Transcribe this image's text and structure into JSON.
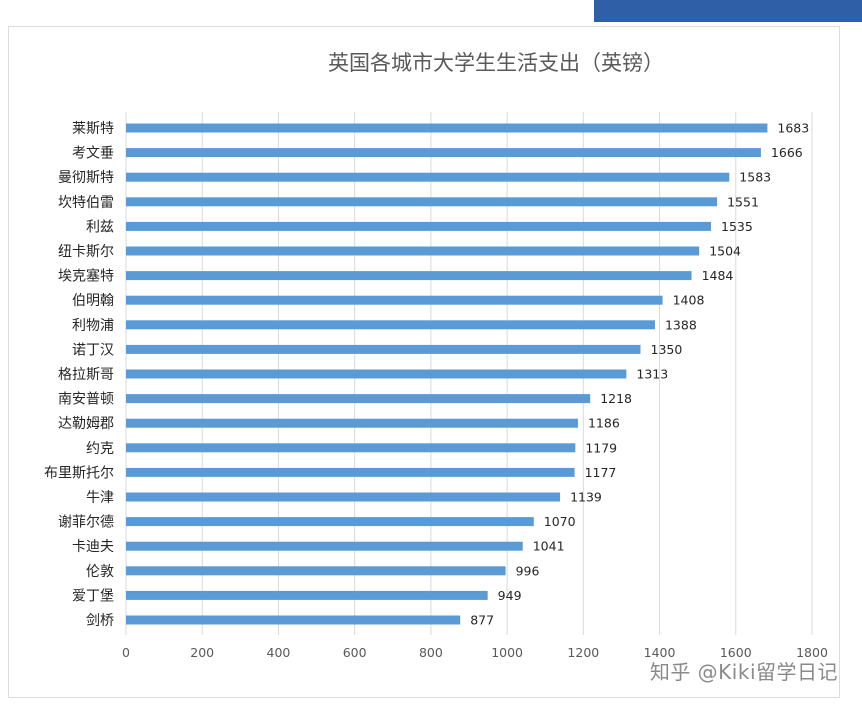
{
  "chart_data": {
    "type": "bar",
    "orientation": "horizontal",
    "title": "英国各城市大学生生活支出（英镑）",
    "categories": [
      "莱斯特",
      "考文垂",
      "曼彻斯特",
      "坎特伯雷",
      "利兹",
      "纽卡斯尔",
      "埃克塞特",
      "伯明翰",
      "利物浦",
      "诺丁汉",
      "格拉斯哥",
      "南安普顿",
      "达勒姆郡",
      "约克",
      "布里斯托尔",
      "牛津",
      "谢菲尔德",
      "卡迪夫",
      "伦敦",
      "爱丁堡",
      "剑桥"
    ],
    "values": [
      1683,
      1666,
      1583,
      1551,
      1535,
      1504,
      1484,
      1408,
      1388,
      1350,
      1313,
      1218,
      1186,
      1179,
      1177,
      1139,
      1070,
      1041,
      996,
      949,
      877
    ],
    "xlim": [
      0,
      1800
    ],
    "xticks": [
      "0",
      "200",
      "400",
      "600",
      "800",
      "1000",
      "1200",
      "1400",
      "1600",
      "1800"
    ],
    "grid": true,
    "bar_color": "#5b9bd5"
  },
  "footer": {
    "credit": "知乎 @Kiki留学日记"
  },
  "colors": {
    "top_bar": "#2f5fa6"
  }
}
